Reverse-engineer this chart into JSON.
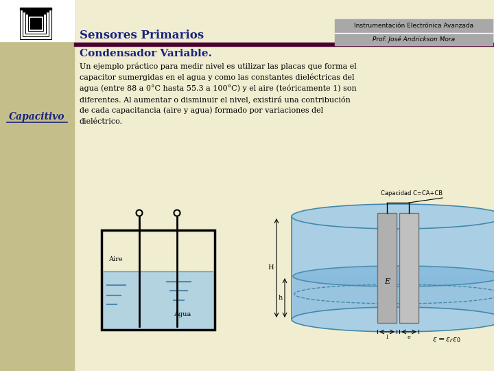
{
  "title": "Sensores Primarios",
  "subtitle_right_line1": "Instrumentación Electrónica Avanzada",
  "subtitle_right_line2": "Prof. José Andrickson Mora",
  "section_title": "Condensador Variable.",
  "sidebar_text": "Capacitivo",
  "body_text": "Un ejemplo práctico para medir nivel es utilizar las placas que forma el\ncapacitor sumergidas en el agua y como las constantes dieléctricas del\nagua (entre 88 a 0°C hasta 55.3 a 100°C) y el aire (teóricamente 1) son\ndiferentes. Al aumentar o disminuir el nivel, existirá una contribución\nde cada capacitancia (aire y agua) formado por variaciones del\ndieléctrico.",
  "bg_color": "#F0EDD0",
  "sidebar_color": "#C4BF8A",
  "header_line_color": "#4B0030",
  "title_color": "#1A237E",
  "section_title_color": "#1A237E",
  "sidebar_text_color": "#1A237E",
  "body_text_color": "#000000",
  "right_box_color": "#A8A8A8",
  "water_color": "#AACFE4",
  "plate_color": "#A0A0A0"
}
